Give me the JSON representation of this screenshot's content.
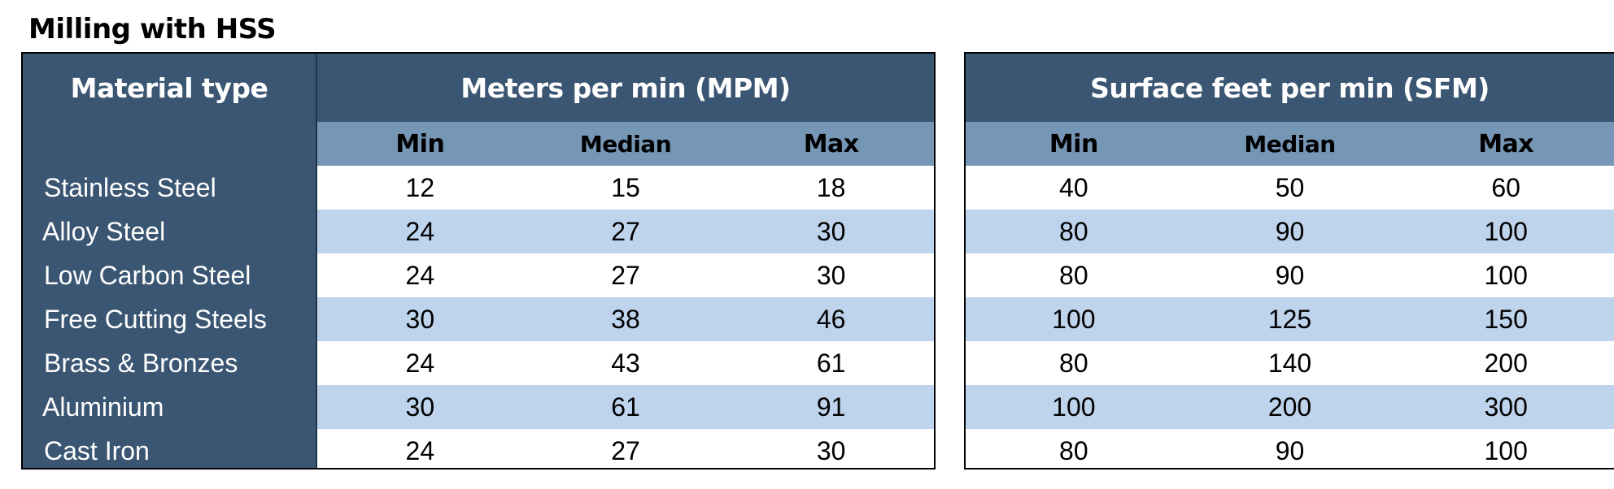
{
  "title": "Milling with HSS",
  "material_header": "Material type",
  "mpm_header": "Meters per min (MPM)",
  "sfm_header": "Surface feet per min (SFM)",
  "sub_headers": {
    "min": "Min",
    "median": "Median",
    "max": "Max"
  },
  "colors": {
    "header_dark": "#3b5672",
    "subheader": "#7696b6",
    "row_alt": "#bed3ec",
    "row_plain": "#ffffff"
  },
  "rows": [
    {
      "material": "Stainless Steel",
      "mpm": [
        "12",
        "15",
        "18"
      ],
      "sfm": [
        "40",
        "50",
        "60"
      ]
    },
    {
      "material": "Alloy Steel",
      "mpm": [
        "24",
        "27",
        "30"
      ],
      "sfm": [
        "80",
        "90",
        "100"
      ]
    },
    {
      "material": "Low Carbon Steel",
      "mpm": [
        "24",
        "27",
        "30"
      ],
      "sfm": [
        "80",
        "90",
        "100"
      ]
    },
    {
      "material": "Free Cutting Steels",
      "mpm": [
        "30",
        "38",
        "46"
      ],
      "sfm": [
        "100",
        "125",
        "150"
      ]
    },
    {
      "material": "Brass & Bronzes",
      "mpm": [
        "24",
        "43",
        "61"
      ],
      "sfm": [
        "80",
        "140",
        "200"
      ]
    },
    {
      "material": "Aluminium",
      "mpm": [
        "30",
        "61",
        "91"
      ],
      "sfm": [
        "100",
        "200",
        "300"
      ]
    },
    {
      "material": "Cast Iron",
      "mpm": [
        "24",
        "27",
        "30"
      ],
      "sfm": [
        "80",
        "90",
        "100"
      ]
    }
  ]
}
